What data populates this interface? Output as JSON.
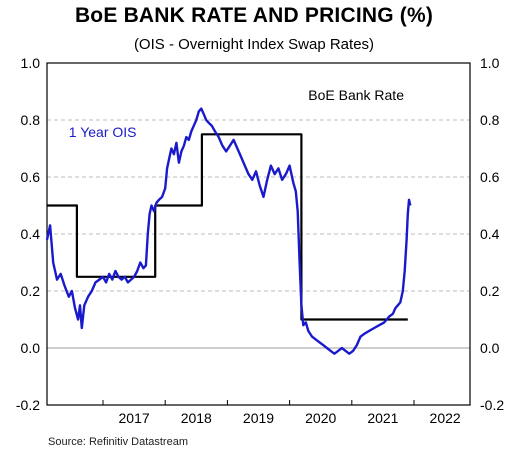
{
  "chart_data": {
    "type": "line",
    "title": "BoE BANK RATE AND PRICING (%)",
    "subtitle": "(OIS - Overnight Index Swap Rates)",
    "source": "Source: Refinitiv Datastream",
    "ylim": [
      -0.2,
      1.0
    ],
    "xlim": [
      2016.1,
      2022.9
    ],
    "y_ticks": [
      "1.0",
      "0.8",
      "0.6",
      "0.4",
      "0.2",
      "0.0",
      "-0.2"
    ],
    "y_tick_values": [
      1.0,
      0.8,
      0.6,
      0.4,
      0.2,
      0.0,
      -0.2
    ],
    "x_ticks": [
      "2017",
      "2018",
      "2019",
      "2020",
      "2021",
      "2022"
    ],
    "x_tick_values": [
      2017.5,
      2018.5,
      2019.5,
      2020.5,
      2021.5,
      2022.5
    ],
    "grid": "horizontal dashed",
    "colors": {
      "ois": "#1a1acc",
      "bank_rate": "#000000",
      "grid": "#bdbdbd"
    },
    "series": [
      {
        "name": "BoE Bank Rate",
        "color": "#000000",
        "step": true,
        "points": [
          [
            2016.1,
            0.5
          ],
          [
            2016.58,
            0.5
          ],
          [
            2016.58,
            0.25
          ],
          [
            2017.84,
            0.25
          ],
          [
            2017.84,
            0.5
          ],
          [
            2018.59,
            0.5
          ],
          [
            2018.59,
            0.75
          ],
          [
            2020.19,
            0.75
          ],
          [
            2020.19,
            0.1
          ],
          [
            2021.9,
            0.1
          ]
        ]
      },
      {
        "name": "1 Year OIS",
        "color": "#1a1acc",
        "points": [
          [
            2016.1,
            0.38
          ],
          [
            2016.15,
            0.43
          ],
          [
            2016.2,
            0.3
          ],
          [
            2016.26,
            0.24
          ],
          [
            2016.32,
            0.26
          ],
          [
            2016.38,
            0.22
          ],
          [
            2016.45,
            0.18
          ],
          [
            2016.5,
            0.2
          ],
          [
            2016.55,
            0.14
          ],
          [
            2016.6,
            0.1
          ],
          [
            2016.63,
            0.15
          ],
          [
            2016.66,
            0.07
          ],
          [
            2016.7,
            0.15
          ],
          [
            2016.76,
            0.18
          ],
          [
            2016.82,
            0.2
          ],
          [
            2016.88,
            0.23
          ],
          [
            2016.94,
            0.24
          ],
          [
            2017.0,
            0.25
          ],
          [
            2017.05,
            0.23
          ],
          [
            2017.1,
            0.26
          ],
          [
            2017.15,
            0.24
          ],
          [
            2017.2,
            0.27
          ],
          [
            2017.25,
            0.25
          ],
          [
            2017.3,
            0.24
          ],
          [
            2017.35,
            0.25
          ],
          [
            2017.4,
            0.23
          ],
          [
            2017.45,
            0.24
          ],
          [
            2017.5,
            0.25
          ],
          [
            2017.55,
            0.27
          ],
          [
            2017.6,
            0.3
          ],
          [
            2017.65,
            0.28
          ],
          [
            2017.69,
            0.29
          ],
          [
            2017.72,
            0.4
          ],
          [
            2017.75,
            0.47
          ],
          [
            2017.78,
            0.5
          ],
          [
            2017.82,
            0.48
          ],
          [
            2017.86,
            0.51
          ],
          [
            2017.9,
            0.52
          ],
          [
            2017.95,
            0.53
          ],
          [
            2018.0,
            0.56
          ],
          [
            2018.03,
            0.63
          ],
          [
            2018.07,
            0.67
          ],
          [
            2018.1,
            0.7
          ],
          [
            2018.14,
            0.68
          ],
          [
            2018.18,
            0.72
          ],
          [
            2018.22,
            0.65
          ],
          [
            2018.26,
            0.69
          ],
          [
            2018.3,
            0.71
          ],
          [
            2018.34,
            0.74
          ],
          [
            2018.38,
            0.73
          ],
          [
            2018.42,
            0.76
          ],
          [
            2018.46,
            0.78
          ],
          [
            2018.5,
            0.8
          ],
          [
            2018.54,
            0.83
          ],
          [
            2018.58,
            0.84
          ],
          [
            2018.62,
            0.82
          ],
          [
            2018.66,
            0.8
          ],
          [
            2018.7,
            0.79
          ],
          [
            2018.75,
            0.78
          ],
          [
            2018.8,
            0.76
          ],
          [
            2018.86,
            0.74
          ],
          [
            2018.92,
            0.71
          ],
          [
            2018.98,
            0.69
          ],
          [
            2019.04,
            0.71
          ],
          [
            2019.1,
            0.73
          ],
          [
            2019.16,
            0.7
          ],
          [
            2019.22,
            0.67
          ],
          [
            2019.28,
            0.64
          ],
          [
            2019.34,
            0.61
          ],
          [
            2019.4,
            0.59
          ],
          [
            2019.46,
            0.62
          ],
          [
            2019.52,
            0.57
          ],
          [
            2019.58,
            0.53
          ],
          [
            2019.64,
            0.59
          ],
          [
            2019.7,
            0.64
          ],
          [
            2019.76,
            0.61
          ],
          [
            2019.82,
            0.63
          ],
          [
            2019.88,
            0.59
          ],
          [
            2019.94,
            0.61
          ],
          [
            2020.0,
            0.64
          ],
          [
            2020.06,
            0.58
          ],
          [
            2020.1,
            0.55
          ],
          [
            2020.13,
            0.48
          ],
          [
            2020.16,
            0.3
          ],
          [
            2020.19,
            0.15
          ],
          [
            2020.22,
            0.08
          ],
          [
            2020.26,
            0.09
          ],
          [
            2020.3,
            0.06
          ],
          [
            2020.36,
            0.04
          ],
          [
            2020.42,
            0.03
          ],
          [
            2020.48,
            0.02
          ],
          [
            2020.54,
            0.01
          ],
          [
            2020.6,
            0.0
          ],
          [
            2020.66,
            -0.01
          ],
          [
            2020.72,
            -0.02
          ],
          [
            2020.78,
            -0.01
          ],
          [
            2020.84,
            0.0
          ],
          [
            2020.9,
            -0.01
          ],
          [
            2020.96,
            -0.02
          ],
          [
            2021.02,
            -0.01
          ],
          [
            2021.08,
            0.01
          ],
          [
            2021.14,
            0.04
          ],
          [
            2021.2,
            0.05
          ],
          [
            2021.28,
            0.06
          ],
          [
            2021.36,
            0.07
          ],
          [
            2021.44,
            0.08
          ],
          [
            2021.52,
            0.09
          ],
          [
            2021.6,
            0.11
          ],
          [
            2021.66,
            0.12
          ],
          [
            2021.7,
            0.14
          ],
          [
            2021.74,
            0.15
          ],
          [
            2021.78,
            0.16
          ],
          [
            2021.82,
            0.2
          ],
          [
            2021.85,
            0.27
          ],
          [
            2021.88,
            0.38
          ],
          [
            2021.9,
            0.47
          ],
          [
            2021.92,
            0.52
          ],
          [
            2021.94,
            0.5
          ]
        ]
      }
    ],
    "annotations": [
      {
        "text": "1 Year OIS",
        "color": "#1a1acc",
        "x": 2016.45,
        "y": 0.74
      },
      {
        "text": "BoE Bank Rate",
        "color": "#000000",
        "x": 2020.3,
        "y": 0.87
      }
    ]
  }
}
